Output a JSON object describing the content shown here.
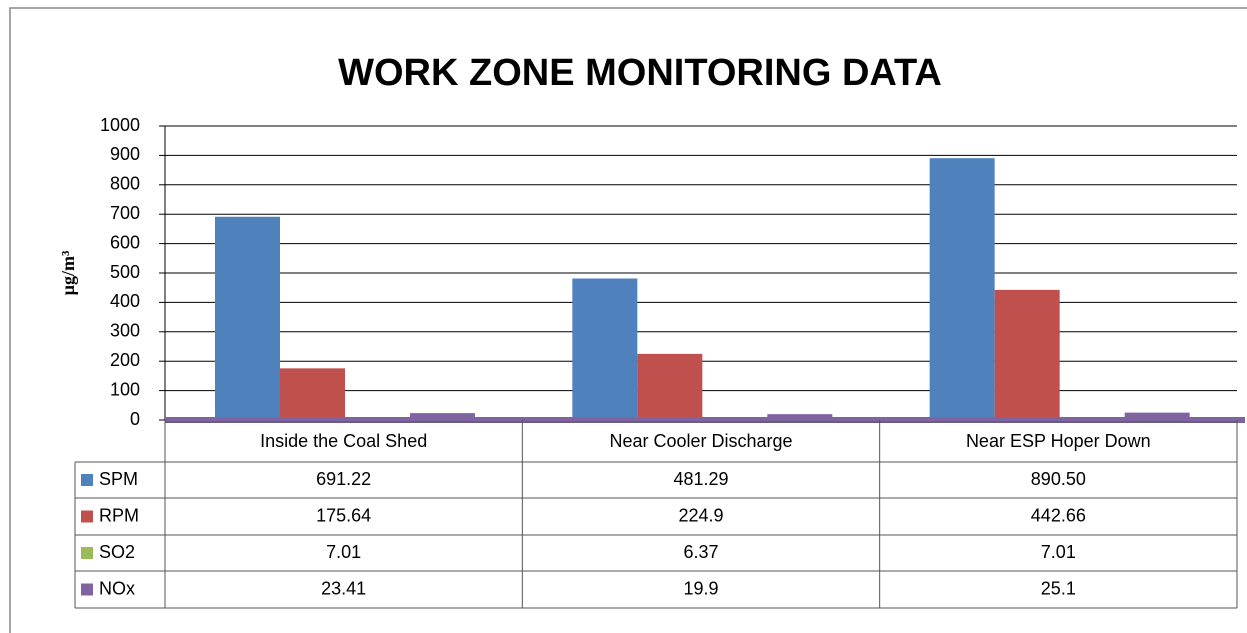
{
  "chart_data": {
    "type": "bar",
    "title": "WORK ZONE MONITORING DATA",
    "y_label": "µg/m³",
    "categories": [
      "Inside the Coal Shed",
      "Near Cooler Discharge",
      "Near ESP Hoper Down"
    ],
    "series": [
      {
        "name": "SPM",
        "color": "#4f81bd",
        "values": [
          691.22,
          481.29,
          890.5
        ],
        "value_labels": [
          "691.22",
          "481.29",
          "890.50"
        ]
      },
      {
        "name": "RPM",
        "color": "#c0504d",
        "values": [
          175.64,
          224.9,
          442.66
        ]
      },
      {
        "name": "SO2",
        "color": "#9bbb59",
        "values": [
          7.01,
          6.37,
          7.01
        ]
      },
      {
        "name": "NOx",
        "color": "#8064a2",
        "values": [
          23.41,
          19.9,
          25.1
        ]
      }
    ],
    "ylim": [
      0,
      1000
    ],
    "yticks": [
      0,
      100,
      200,
      300,
      400,
      500,
      600,
      700,
      800,
      900,
      1000
    ],
    "grid": true,
    "data_table": true
  }
}
